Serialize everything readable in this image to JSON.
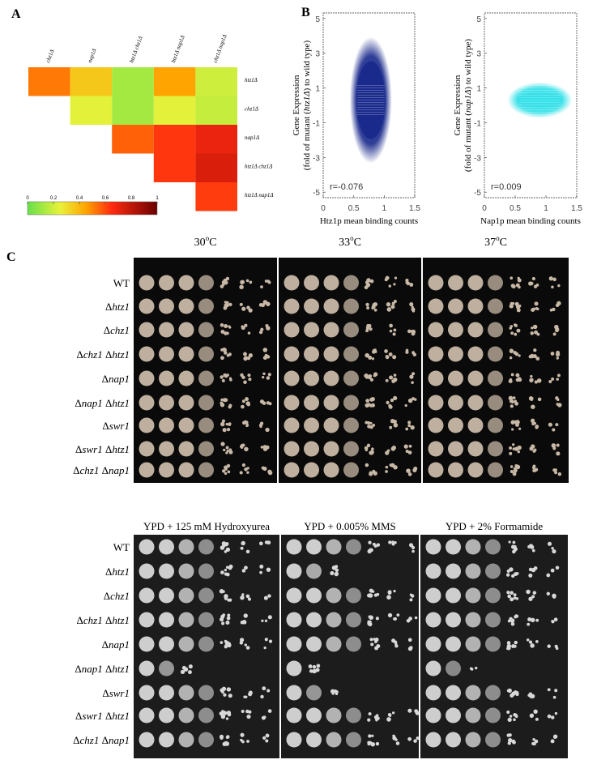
{
  "panels": {
    "a": {
      "label": "A",
      "columns": [
        "chz1Δ",
        "nap1Δ",
        "htz1Δ chz1Δ",
        "htz1Δ nap1Δ",
        "chz1Δ nap1Δ"
      ],
      "rows": [
        "htz1Δ",
        "chz1Δ",
        "nap1Δ",
        "htz1Δ chz1Δ",
        "htz1Δ nap1Δ"
      ],
      "matrix": [
        [
          0.52,
          0.36,
          0.12,
          0.45,
          0.2
        ],
        [
          null,
          0.24,
          0.12,
          0.24,
          0.18
        ],
        [
          null,
          null,
          0.56,
          0.63,
          0.7
        ],
        [
          null,
          null,
          null,
          0.63,
          0.74
        ],
        [
          null,
          null,
          null,
          null,
          0.62
        ]
      ],
      "colorbar": {
        "lim": [
          0,
          1
        ],
        "ticks": [
          0,
          0.2,
          0.4,
          0.6,
          0.8,
          1
        ]
      }
    },
    "b": {
      "label": "B",
      "plots": [
        {
          "ylabel": [
            "Gene Expression",
            "(fold of mutant (",
            "htz1Δ",
            ") to wild type)"
          ],
          "xlabel": "Htz1p mean binding counts",
          "r": "r=-0.076",
          "color": "#1a2a8c",
          "xlim": [
            0,
            1.5
          ],
          "xticks": [
            0,
            0.5,
            1,
            1.5
          ],
          "ylim": [
            -5,
            5
          ],
          "yticks": [
            5,
            3,
            1,
            -1,
            -3,
            -5
          ]
        },
        {
          "ylabel": [
            "Gene Expression",
            "(fold of mutant (",
            "nap1Δ",
            ") to wild type)"
          ],
          "xlabel": "Nap1p mean binding counts",
          "r": "r=0.009",
          "color": "#33e0e8",
          "xlim": [
            0,
            1.5
          ],
          "xticks": [
            0,
            0.5,
            1,
            1.5
          ],
          "ylim": [
            -5,
            5
          ],
          "yticks": [
            5,
            3,
            1,
            -1,
            -3,
            -5
          ]
        }
      ]
    },
    "c": {
      "label": "C",
      "strains": [
        [
          "WT"
        ],
        [
          "Δ",
          "htz1"
        ],
        [
          "Δ",
          "chz1"
        ],
        [
          "Δ",
          "chz1",
          " Δ",
          "htz1"
        ],
        [
          "Δ",
          "nap1"
        ],
        [
          "Δ",
          "nap1",
          " Δ",
          "htz1"
        ],
        [
          "Δ",
          "swr1"
        ],
        [
          "Δ",
          "swr1",
          " Δ",
          "htz1"
        ],
        [
          "Δ",
          "chz1",
          " Δ",
          "nap1"
        ]
      ],
      "temperatures": [
        [
          "30",
          "o",
          "C"
        ],
        [
          "33",
          "o",
          "C"
        ],
        [
          "37",
          "o",
          "C"
        ]
      ],
      "conditions": [
        "YPD + 125 mM Hydroxyurea",
        "YPD + 0.005% MMS",
        "YPD + 2% Formamide"
      ]
    }
  }
}
